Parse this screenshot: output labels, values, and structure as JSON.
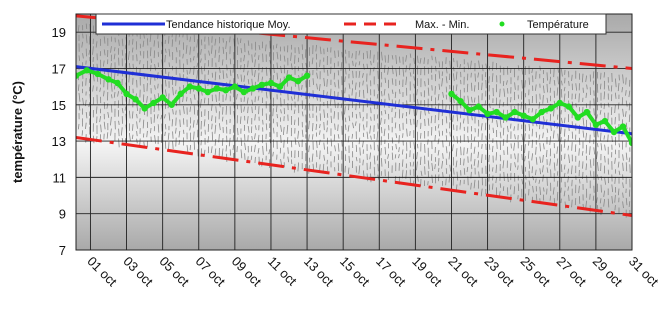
{
  "chart_data": {
    "type": "line",
    "ylabel": "température (°C)",
    "xlabel": "",
    "ylim": [
      7,
      20
    ],
    "xlim": [
      0.2,
      31
    ],
    "grid": true,
    "legend_position": "top",
    "y_ticks": [
      7,
      9,
      11,
      13,
      15,
      17,
      19
    ],
    "y_tick_labels": [
      "7",
      "9",
      "11",
      "13",
      "15",
      "17",
      "19"
    ],
    "x_ticks": [
      1,
      3,
      5,
      7,
      9,
      11,
      13,
      15,
      17,
      19,
      21,
      23,
      25,
      27,
      29,
      31
    ],
    "x_tick_labels": [
      "01 oct",
      "03 oct",
      "05 oct",
      "07 oct",
      "09 oct",
      "11 oct",
      "13 oct",
      "15 oct",
      "17 oct",
      "19 oct",
      "21 oct",
      "23 oct",
      "25 oct",
      "27 oct",
      "29 oct",
      "31 oct"
    ],
    "legend": {
      "trend": "Tendance historique Moy.",
      "maxmin": "Max. - Min.",
      "temp": "Température"
    },
    "colors": {
      "trend": "#1f2fd6",
      "maxmin": "#e8231f",
      "temp": "#22dd22",
      "band": "#888888"
    },
    "series": [
      {
        "name": "Tendance historique Moy.",
        "style": "solid",
        "x": [
          0.2,
          31
        ],
        "values": [
          17.1,
          13.4
        ]
      },
      {
        "name": "Max. - Min.",
        "style": "dashdot",
        "x": [
          0.2,
          31
        ],
        "values": [
          19.9,
          17.0
        ]
      },
      {
        "name": "Max. - Min.",
        "style": "dashdot",
        "x": [
          0.2,
          31
        ],
        "values": [
          13.2,
          8.9
        ]
      },
      {
        "name": "Température",
        "style": "dots",
        "x": [
          0.2,
          0.8,
          1.4,
          2,
          2.5,
          3,
          3.5,
          4,
          4.5,
          5,
          5.5,
          6,
          6.5,
          7,
          7.5,
          8,
          8.5,
          9,
          9.5,
          10,
          10.5,
          11,
          11.5,
          12,
          12.5,
          13,
          21,
          21.5,
          22,
          22.5,
          23,
          23.5,
          24,
          24.5,
          25,
          25.5,
          26,
          26.5,
          27,
          27.5,
          28,
          28.5,
          29,
          29.5,
          30,
          30.5,
          31
        ],
        "values": [
          16.6,
          16.9,
          16.7,
          16.4,
          16.2,
          15.6,
          15.3,
          14.8,
          15.1,
          15.4,
          15.0,
          15.6,
          16.0,
          15.9,
          15.7,
          15.9,
          15.8,
          16.0,
          15.7,
          15.9,
          16.1,
          16.2,
          16.0,
          16.5,
          16.3,
          16.6,
          15.6,
          15.2,
          14.7,
          14.9,
          14.5,
          14.6,
          14.3,
          14.6,
          14.4,
          14.2,
          14.6,
          14.8,
          15.1,
          14.9,
          14.3,
          14.6,
          13.9,
          14.1,
          13.5,
          13.8,
          12.9
        ]
      }
    ]
  }
}
